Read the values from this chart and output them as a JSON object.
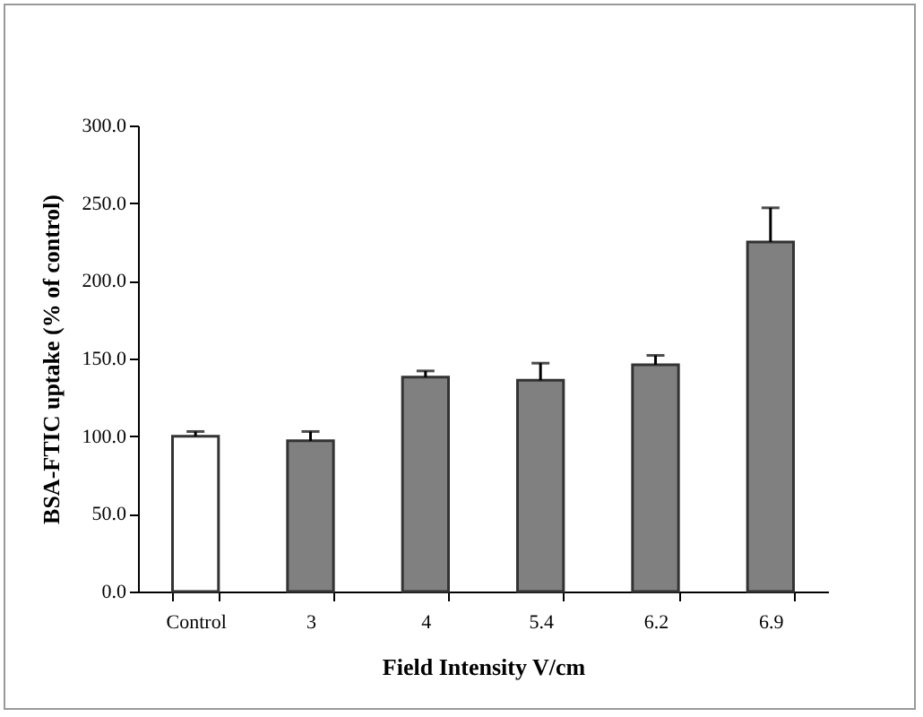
{
  "chart_data": {
    "type": "bar",
    "xlabel": "Field Intensity V/cm",
    "ylabel": "BSA-FTIC uptake (% of control)",
    "categories": [
      "Control",
      "3",
      "4",
      "5.4",
      "6.2",
      "6.9"
    ],
    "values": [
      100,
      97,
      138,
      136,
      146,
      225
    ],
    "colors": [
      "#ffffff",
      "#808080",
      "#808080",
      "#808080",
      "#808080",
      "#808080"
    ],
    "errors": [
      [
        100,
        103
      ],
      [
        97,
        103
      ],
      [
        138,
        142
      ],
      [
        136,
        147
      ],
      [
        146,
        152
      ],
      [
        225,
        247
      ]
    ],
    "ylim": [
      0,
      300
    ],
    "yticks": [
      {
        "value": 0,
        "label": "0.0"
      },
      {
        "value": 50,
        "label": "50.0"
      },
      {
        "value": 100,
        "label": "100.0"
      },
      {
        "value": 150,
        "label": "150.0"
      },
      {
        "value": 200,
        "label": "200.0"
      },
      {
        "value": 250,
        "label": "250.0"
      },
      {
        "value": 300,
        "label": "300.0"
      }
    ],
    "grid": false
  }
}
